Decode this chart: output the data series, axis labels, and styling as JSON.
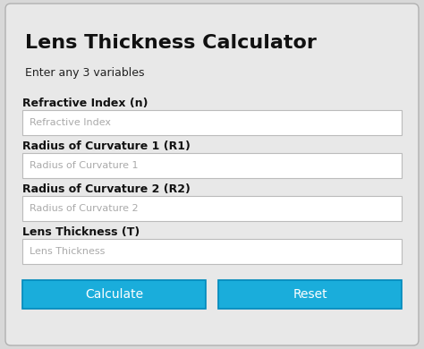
{
  "title": "Lens Thickness Calculator",
  "subtitle": "Enter any 3 variables",
  "fields": [
    {
      "label": "Refractive Index (n)",
      "placeholder": "Refractive Index"
    },
    {
      "label": "Radius of Curvature 1 (R1)",
      "placeholder": "Radius of Curvature 1"
    },
    {
      "label": "Radius of Curvature 2 (R2)",
      "placeholder": "Radius of Curvature 2"
    },
    {
      "label": "Lens Thickness (T)",
      "placeholder": "Lens Thickness"
    }
  ],
  "buttons": [
    "Calculate",
    "Reset"
  ],
  "bg_color": "#d8d8d8",
  "card_color": "#e8e8e8",
  "input_bg": "#ffffff",
  "input_border": "#bbbbbb",
  "button_color": "#1aaddb",
  "button_text_color": "#ffffff",
  "title_color": "#111111",
  "label_color": "#111111",
  "placeholder_color": "#aaaaaa",
  "subtitle_color": "#222222",
  "button_border_color": "#0088bb",
  "title_fontsize": 16,
  "subtitle_fontsize": 9,
  "label_fontsize": 9,
  "placeholder_fontsize": 8,
  "button_fontsize": 10
}
